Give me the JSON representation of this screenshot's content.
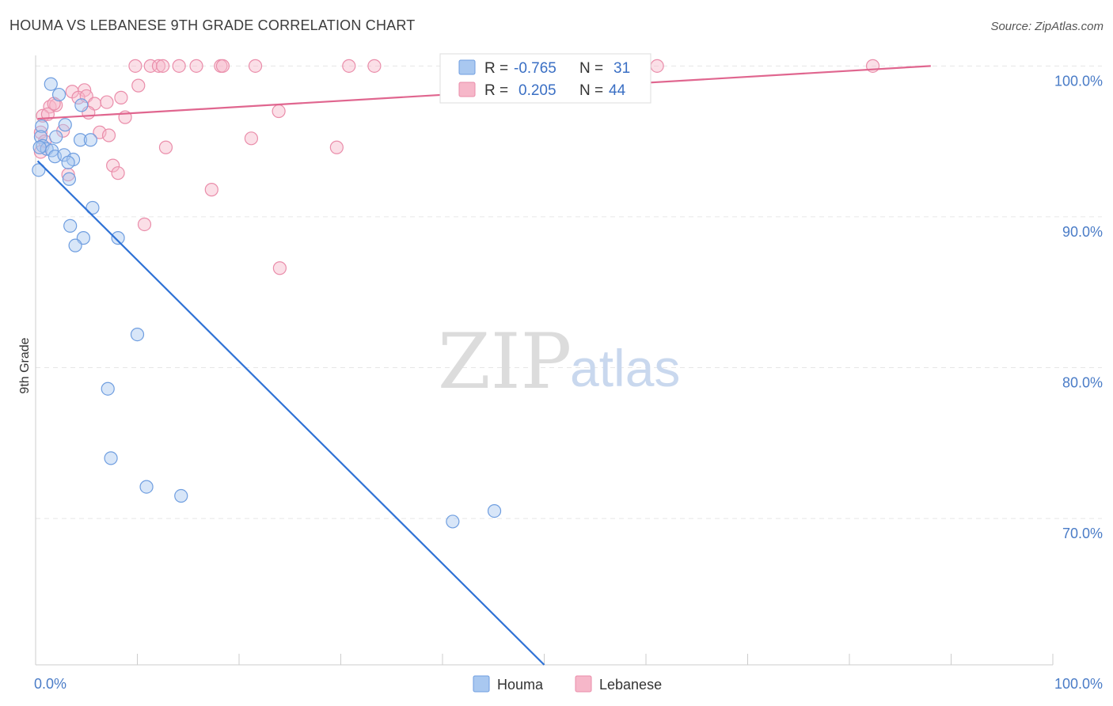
{
  "title": "HOUMA VS LEBANESE 9TH GRADE CORRELATION CHART",
  "source": "Source: ZipAtlas.com",
  "watermark": {
    "zip": "ZIP",
    "atlas": "atlas"
  },
  "colors": {
    "houma_fill": "#a9c8f0",
    "houma_stroke": "#6f9ee0",
    "houma_line": "#2f72d6",
    "lebanese_fill": "#f6b7c9",
    "lebanese_stroke": "#ea8daa",
    "lebanese_line": "#e0668f",
    "grid": "#e6e6e6",
    "axis_text": "#4a7cc7"
  },
  "chart_data": {
    "type": "scatter",
    "title": "HOUMA VS LEBANESE 9TH GRADE CORRELATION CHART",
    "xlabel": "",
    "ylabel": "9th Grade",
    "xlim": [
      0,
      100
    ],
    "ylim": [
      60.3,
      100.7
    ],
    "y_ticks": [
      {
        "value": 100,
        "label": "100.0%"
      },
      {
        "value": 90,
        "label": "90.0%"
      },
      {
        "value": 80,
        "label": "80.0%"
      },
      {
        "value": 70,
        "label": "70.0%"
      }
    ],
    "x_tick_labels": [
      {
        "value": 0,
        "label": "0.0%"
      },
      {
        "value": 100,
        "label": "100.0%"
      }
    ],
    "grid": true,
    "legend_position": "bottom-center",
    "series": [
      {
        "name": "Houma",
        "R": "-0.765",
        "N": "31",
        "trend": {
          "x": [
            0.2,
            50.0
          ],
          "y": [
            93.7,
            60.3
          ]
        },
        "points": [
          {
            "x": 1.5,
            "y": 98.8
          },
          {
            "x": 2.3,
            "y": 98.1
          },
          {
            "x": 4.5,
            "y": 97.4
          },
          {
            "x": 0.6,
            "y": 96.0
          },
          {
            "x": 2.9,
            "y": 96.1
          },
          {
            "x": 0.5,
            "y": 95.3
          },
          {
            "x": 2.0,
            "y": 95.3
          },
          {
            "x": 4.4,
            "y": 95.1
          },
          {
            "x": 5.4,
            "y": 95.1
          },
          {
            "x": 0.7,
            "y": 94.7
          },
          {
            "x": 1.1,
            "y": 94.5
          },
          {
            "x": 1.6,
            "y": 94.4
          },
          {
            "x": 1.9,
            "y": 94.0
          },
          {
            "x": 2.8,
            "y": 94.1
          },
          {
            "x": 3.7,
            "y": 93.8
          },
          {
            "x": 3.2,
            "y": 93.6
          },
          {
            "x": 0.3,
            "y": 93.1
          },
          {
            "x": 3.3,
            "y": 92.5
          },
          {
            "x": 5.6,
            "y": 90.6
          },
          {
            "x": 3.4,
            "y": 89.4
          },
          {
            "x": 4.7,
            "y": 88.6
          },
          {
            "x": 8.1,
            "y": 88.6
          },
          {
            "x": 3.9,
            "y": 88.1
          },
          {
            "x": 10.0,
            "y": 82.2
          },
          {
            "x": 7.1,
            "y": 78.6
          },
          {
            "x": 7.4,
            "y": 74.0
          },
          {
            "x": 10.9,
            "y": 72.1
          },
          {
            "x": 14.3,
            "y": 71.5
          },
          {
            "x": 41.0,
            "y": 69.8
          },
          {
            "x": 45.1,
            "y": 70.5
          },
          {
            "x": 0.4,
            "y": 94.6
          }
        ]
      },
      {
        "name": "Lebanese",
        "R": "0.205",
        "N": "44",
        "trend": {
          "x": [
            0.2,
            88.0
          ],
          "y": [
            96.5,
            100.0
          ]
        },
        "points": [
          {
            "x": 9.8,
            "y": 100.0
          },
          {
            "x": 11.3,
            "y": 100.0
          },
          {
            "x": 12.1,
            "y": 100.0
          },
          {
            "x": 12.5,
            "y": 100.0
          },
          {
            "x": 14.1,
            "y": 100.0
          },
          {
            "x": 15.8,
            "y": 100.0
          },
          {
            "x": 18.2,
            "y": 100.0
          },
          {
            "x": 18.4,
            "y": 100.0
          },
          {
            "x": 21.6,
            "y": 100.0
          },
          {
            "x": 30.8,
            "y": 100.0
          },
          {
            "x": 33.3,
            "y": 100.0
          },
          {
            "x": 61.1,
            "y": 100.0
          },
          {
            "x": 82.3,
            "y": 100.0
          },
          {
            "x": 10.1,
            "y": 98.7
          },
          {
            "x": 3.6,
            "y": 98.3
          },
          {
            "x": 4.8,
            "y": 98.4
          },
          {
            "x": 4.2,
            "y": 97.9
          },
          {
            "x": 8.4,
            "y": 97.9
          },
          {
            "x": 5.0,
            "y": 98.0
          },
          {
            "x": 1.4,
            "y": 97.3
          },
          {
            "x": 2.0,
            "y": 97.4
          },
          {
            "x": 5.8,
            "y": 97.5
          },
          {
            "x": 7.0,
            "y": 97.6
          },
          {
            "x": 23.9,
            "y": 97.0
          },
          {
            "x": 0.7,
            "y": 96.7
          },
          {
            "x": 1.2,
            "y": 96.8
          },
          {
            "x": 5.2,
            "y": 96.9
          },
          {
            "x": 8.8,
            "y": 96.6
          },
          {
            "x": 2.7,
            "y": 95.7
          },
          {
            "x": 6.3,
            "y": 95.6
          },
          {
            "x": 7.2,
            "y": 95.4
          },
          {
            "x": 0.5,
            "y": 95.6
          },
          {
            "x": 21.2,
            "y": 95.2
          },
          {
            "x": 0.9,
            "y": 95.0
          },
          {
            "x": 12.8,
            "y": 94.6
          },
          {
            "x": 29.6,
            "y": 94.6
          },
          {
            "x": 0.5,
            "y": 94.3
          },
          {
            "x": 7.6,
            "y": 93.4
          },
          {
            "x": 8.1,
            "y": 92.9
          },
          {
            "x": 3.2,
            "y": 92.8
          },
          {
            "x": 17.3,
            "y": 91.8
          },
          {
            "x": 10.7,
            "y": 89.5
          },
          {
            "x": 24.0,
            "y": 86.6
          },
          {
            "x": 1.8,
            "y": 97.5
          }
        ]
      }
    ]
  }
}
